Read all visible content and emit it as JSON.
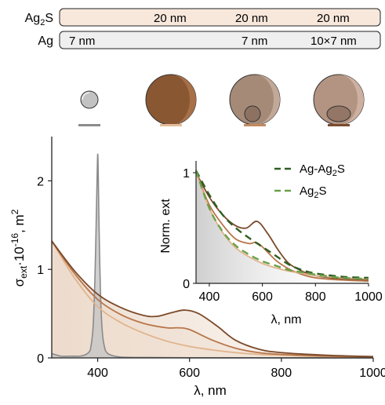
{
  "header_table": {
    "rows": [
      {
        "label_main": "Ag",
        "label_sub": "2",
        "label_tail": "S",
        "color": "#f8e8dc",
        "cells": [
          "",
          "20 nm",
          "20 nm",
          "20 nm"
        ]
      },
      {
        "label_main": "Ag",
        "label_sub": "",
        "label_tail": "",
        "color": "#efefef",
        "cells": [
          "7 nm",
          "",
          "7 nm",
          "10×7 nm"
        ]
      }
    ]
  },
  "particles": [
    {
      "name": "Ag",
      "fill": "#c2c2c2",
      "legend_color": "#8c8c8c"
    },
    {
      "name": "Ag2S",
      "fill": "#8a5733",
      "legend_color": "#e2bd98"
    },
    {
      "name": "Ag-Ag2S sphere",
      "fill": "#b09786",
      "legend_color": "#c28a5e"
    },
    {
      "name": "Ag-Ag2S ellipsoid",
      "fill": "#c0a08a",
      "legend_color": "#7a4c2e"
    }
  ],
  "chart_data": [
    {
      "type": "line",
      "xlabel": "λ, nm",
      "ylabel": {
        "main": "σ",
        "sub": "ext",
        "mid": "·10",
        "sup": "-16",
        "tail": ", m",
        "sup2": "2"
      },
      "xlim": [
        300,
        1000
      ],
      "ylim": [
        0,
        2.5
      ],
      "xticks": [
        400,
        600,
        800,
        1000
      ],
      "yticks": [
        0,
        1,
        2
      ],
      "series": [
        {
          "color": "#8a8a8a",
          "fill": "#c4c4c4",
          "x": [
            300,
            320,
            340,
            360,
            370,
            380,
            385,
            390,
            394,
            397,
            399,
            400,
            401,
            403,
            406,
            410,
            415,
            420,
            430,
            450,
            500,
            600,
            800,
            1000
          ],
          "y": [
            0.05,
            0.02,
            0.02,
            0.02,
            0.03,
            0.06,
            0.12,
            0.35,
            0.9,
            1.6,
            2.1,
            2.3,
            2.15,
            1.5,
            0.75,
            0.3,
            0.12,
            0.06,
            0.03,
            0.01,
            0.005,
            0.002,
            0.001,
            0.0
          ]
        },
        {
          "color": "#e0b48c",
          "fill": "#f2e0d0",
          "x": [
            300,
            350,
            400,
            450,
            500,
            550,
            600,
            650,
            700,
            750,
            800,
            900,
            1000
          ],
          "y": [
            1.32,
            0.9,
            0.58,
            0.4,
            0.28,
            0.19,
            0.13,
            0.09,
            0.06,
            0.04,
            0.03,
            0.015,
            0.008
          ]
        },
        {
          "color": "#b8764a",
          "fill": "#ead6c6",
          "x": [
            300,
            350,
            400,
            450,
            500,
            550,
            575,
            600,
            650,
            700,
            750,
            800,
            900,
            1000
          ],
          "y": [
            1.32,
            0.95,
            0.66,
            0.49,
            0.39,
            0.34,
            0.34,
            0.32,
            0.2,
            0.11,
            0.06,
            0.04,
            0.02,
            0.01
          ]
        },
        {
          "color": "#7c4a2a",
          "fill": "#e2cfc2",
          "x": [
            300,
            350,
            400,
            450,
            500,
            530,
            560,
            590,
            620,
            660,
            700,
            750,
            800,
            900,
            1000
          ],
          "y": [
            1.32,
            0.98,
            0.72,
            0.57,
            0.48,
            0.47,
            0.51,
            0.54,
            0.5,
            0.36,
            0.2,
            0.1,
            0.06,
            0.03,
            0.015
          ]
        }
      ]
    },
    {
      "type": "line",
      "xlabel": "λ, nm",
      "ylabel": "Norm. ext",
      "xlim": [
        350,
        1000
      ],
      "ylim": [
        0,
        1.05
      ],
      "xticks": [
        400,
        600,
        800,
        1000
      ],
      "yticks": [
        0,
        1
      ],
      "legend": [
        {
          "text": "Ag-Ag",
          "sub": "2",
          "tail": "S",
          "color": "#2f5e22"
        },
        {
          "text": "Ag",
          "sub": "2",
          "tail": "S",
          "color": "#6aa14a"
        }
      ],
      "series": [
        {
          "color": "#7c4a2a",
          "dash": false,
          "x": [
            350,
            400,
            450,
            500,
            540,
            580,
            620,
            660,
            700,
            750,
            800,
            900,
            1000
          ],
          "y": [
            1.0,
            0.78,
            0.62,
            0.52,
            0.5,
            0.56,
            0.45,
            0.3,
            0.18,
            0.11,
            0.07,
            0.04,
            0.03
          ]
        },
        {
          "color": "#b8764a",
          "dash": false,
          "x": [
            350,
            400,
            450,
            500,
            550,
            575,
            600,
            650,
            700,
            750,
            800,
            900,
            1000
          ],
          "y": [
            1.0,
            0.71,
            0.53,
            0.4,
            0.36,
            0.37,
            0.33,
            0.21,
            0.13,
            0.08,
            0.05,
            0.03,
            0.02
          ]
        },
        {
          "color": "#e0b48c",
          "dash": false,
          "x": [
            350,
            400,
            450,
            500,
            550,
            600,
            650,
            700,
            750,
            800,
            900,
            1000
          ],
          "y": [
            1.0,
            0.68,
            0.46,
            0.32,
            0.24,
            0.18,
            0.14,
            0.11,
            0.09,
            0.07,
            0.05,
            0.04
          ]
        },
        {
          "color": "#2f5e22",
          "dash": true,
          "x": [
            350,
            400,
            450,
            500,
            550,
            600,
            650,
            700,
            750,
            800,
            900,
            1000
          ],
          "y": [
            1.02,
            0.8,
            0.62,
            0.5,
            0.41,
            0.33,
            0.25,
            0.17,
            0.12,
            0.09,
            0.06,
            0.05
          ]
        },
        {
          "color": "#6aa14a",
          "dash": true,
          "x": [
            350,
            400,
            450,
            500,
            550,
            600,
            650,
            700,
            750,
            800,
            900,
            1000
          ],
          "y": [
            1.02,
            0.68,
            0.47,
            0.34,
            0.26,
            0.2,
            0.16,
            0.12,
            0.1,
            0.08,
            0.05,
            0.04
          ]
        }
      ]
    }
  ]
}
